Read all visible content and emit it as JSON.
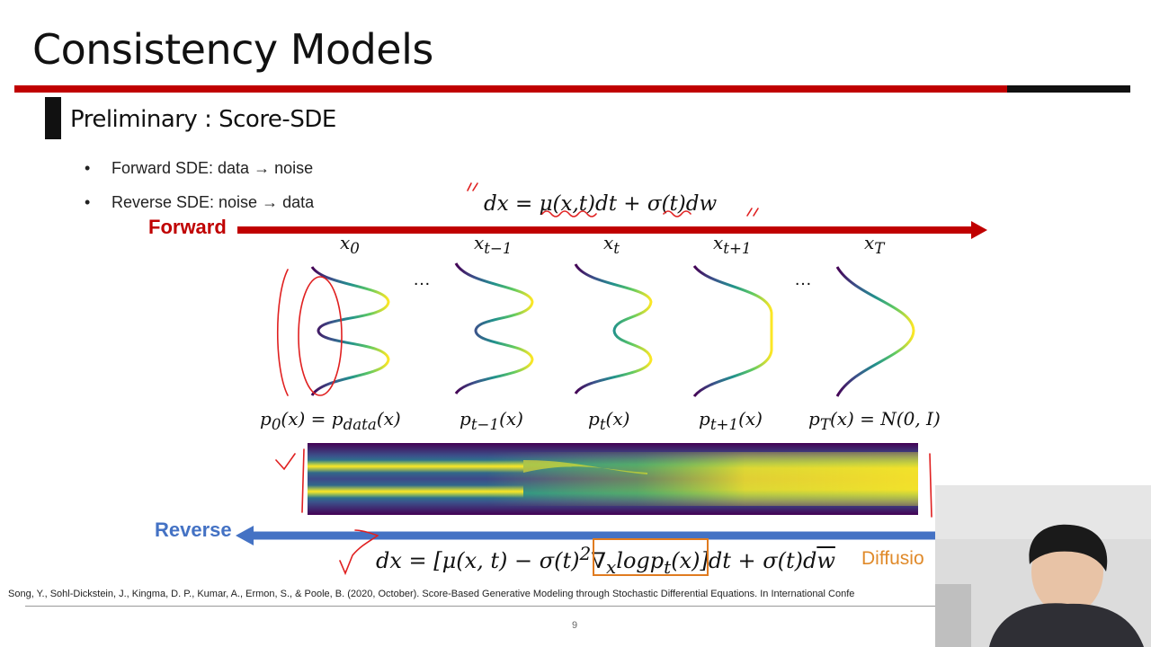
{
  "slide": {
    "title": "Consistency Models",
    "section": "Preliminary : Score-SDE",
    "bullets": [
      {
        "marker": "•",
        "text": "Forward SDE: data → noise"
      },
      {
        "marker": "•",
        "text": "Reverse SDE: noise → data"
      }
    ],
    "forward_label": "Forward",
    "reverse_label": "Reverse",
    "forward_equation": "dx = μ(x,t)dt + σ(t)dw",
    "x_labels": [
      {
        "base": "x",
        "sub": "0"
      },
      {
        "base": "x",
        "sub": "t−1"
      },
      {
        "base": "x",
        "sub": "t"
      },
      {
        "base": "x",
        "sub": "t+1"
      },
      {
        "base": "x",
        "sub": "T"
      }
    ],
    "ellipsis": [
      "…",
      "…"
    ],
    "p_labels": [
      {
        "base": "p",
        "sub": "0",
        "rest": "(x) = ",
        "base2": "p",
        "sub2": "data",
        "rest2": "(x)"
      },
      {
        "base": "p",
        "sub": "t−1",
        "rest": "(x)",
        "base2": "",
        "sub2": "",
        "rest2": ""
      },
      {
        "base": "p",
        "sub": "t",
        "rest": "(x)",
        "base2": "",
        "sub2": "",
        "rest2": ""
      },
      {
        "base": "p",
        "sub": "t+1",
        "rest": "(x)",
        "base2": "",
        "sub2": "",
        "rest2": ""
      },
      {
        "base": "p",
        "sub": "T",
        "rest": "(x) = N(0, I)",
        "base2": "",
        "sub2": "",
        "rest2": ""
      }
    ],
    "reverse_equation": {
      "prefix": "dx = [μ(x, t) − σ(t)",
      "sup": "2",
      "nabla": "∇",
      "nabla_sub": "x",
      "mid": "logp",
      "mid_sub": "t",
      "mid_rest": "(x)",
      "suffix": "]dt + σ(t)d",
      "wbar": "w"
    },
    "diffusion_label": "Diffusio",
    "citation": "Song, Y., Sohl-Dickstein, J., Kingma, D. P., Kumar, A., Ermon, S., & Poole, B. (2020, October). Score-Based Generative Modeling through Stochastic Differential Equations. In International Confe",
    "page_number": "9"
  },
  "colors": {
    "accent_red": "#c00000",
    "reverse_blue": "#4472c4",
    "highlight_orange": "#e07b20",
    "annotation_red": "#e02020"
  }
}
